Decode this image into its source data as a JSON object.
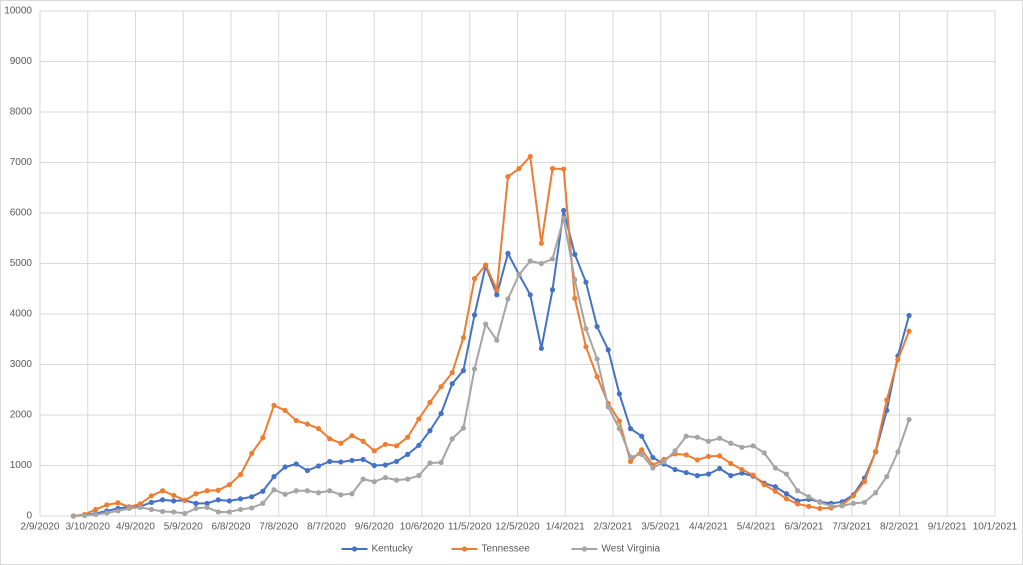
{
  "chart_data": {
    "type": "line",
    "x": [
      "2020-03-01",
      "2020-03-08",
      "2020-03-15",
      "2020-03-22",
      "2020-03-29",
      "2020-04-05",
      "2020-04-12",
      "2020-04-19",
      "2020-04-26",
      "2020-05-03",
      "2020-05-10",
      "2020-05-17",
      "2020-05-24",
      "2020-05-31",
      "2020-06-07",
      "2020-06-14",
      "2020-06-21",
      "2020-06-28",
      "2020-07-05",
      "2020-07-12",
      "2020-07-19",
      "2020-07-26",
      "2020-08-02",
      "2020-08-09",
      "2020-08-16",
      "2020-08-23",
      "2020-08-30",
      "2020-09-06",
      "2020-09-13",
      "2020-09-20",
      "2020-09-27",
      "2020-10-04",
      "2020-10-11",
      "2020-10-18",
      "2020-10-25",
      "2020-11-01",
      "2020-11-08",
      "2020-11-15",
      "2020-11-22",
      "2020-11-29",
      "2020-12-06",
      "2020-12-13",
      "2020-12-20",
      "2020-12-27",
      "2021-01-03",
      "2021-01-10",
      "2021-01-17",
      "2021-01-24",
      "2021-01-31",
      "2021-02-07",
      "2021-02-14",
      "2021-02-21",
      "2021-02-28",
      "2021-03-07",
      "2021-03-14",
      "2021-03-21",
      "2021-03-28",
      "2021-04-04",
      "2021-04-11",
      "2021-04-18",
      "2021-04-25",
      "2021-05-02",
      "2021-05-09",
      "2021-05-16",
      "2021-05-23",
      "2021-05-30",
      "2021-06-06",
      "2021-06-13",
      "2021-06-20",
      "2021-06-27",
      "2021-07-04",
      "2021-07-11",
      "2021-07-18",
      "2021-07-25",
      "2021-08-01",
      "2021-08-08"
    ],
    "series": [
      {
        "name": "Kentucky",
        "color": "#4472c4",
        "values": [
          0,
          20,
          50,
          100,
          150,
          180,
          190,
          270,
          320,
          300,
          310,
          250,
          250,
          320,
          300,
          340,
          380,
          490,
          780,
          970,
          1030,
          900,
          990,
          1080,
          1070,
          1100,
          1120,
          1000,
          1010,
          1080,
          1220,
          1400,
          1690,
          2030,
          2620,
          2880,
          3980,
          4950,
          4380,
          5200,
          4780,
          4380,
          3320,
          4480,
          6050,
          5180,
          4630,
          3750,
          3290,
          2420,
          1730,
          1580,
          1160,
          1030,
          920,
          860,
          800,
          830,
          940,
          800,
          850,
          790,
          650,
          580,
          440,
          300,
          330,
          280,
          250,
          280,
          420,
          750,
          1270,
          2090,
          3170,
          3970
        ]
      },
      {
        "name": "Tennessee",
        "color": "#ed7d31",
        "values": [
          0,
          30,
          130,
          220,
          260,
          180,
          240,
          400,
          500,
          410,
          310,
          440,
          500,
          510,
          620,
          820,
          1240,
          1550,
          2190,
          2090,
          1890,
          1820,
          1730,
          1530,
          1440,
          1590,
          1480,
          1290,
          1420,
          1390,
          1560,
          1920,
          2250,
          2560,
          2840,
          3530,
          4700,
          4970,
          4480,
          6720,
          6880,
          7120,
          5400,
          6880,
          6870,
          4310,
          3350,
          2760,
          2230,
          1880,
          1080,
          1310,
          1010,
          1120,
          1230,
          1210,
          1110,
          1180,
          1190,
          1040,
          920,
          810,
          620,
          490,
          340,
          240,
          190,
          150,
          160,
          220,
          400,
          680,
          1280,
          2300,
          3100,
          3660
        ]
      },
      {
        "name": "West Virginia",
        "color": "#a5a5a5",
        "values": [
          0,
          10,
          30,
          60,
          100,
          150,
          170,
          130,
          90,
          80,
          50,
          150,
          170,
          80,
          80,
          130,
          160,
          250,
          520,
          430,
          500,
          500,
          460,
          500,
          420,
          440,
          730,
          680,
          760,
          710,
          730,
          800,
          1050,
          1060,
          1530,
          1740,
          2910,
          3800,
          3480,
          4300,
          4780,
          5050,
          5000,
          5090,
          5900,
          4680,
          3710,
          3110,
          2160,
          1730,
          1170,
          1220,
          950,
          1070,
          1290,
          1580,
          1560,
          1480,
          1540,
          1440,
          1360,
          1390,
          1250,
          950,
          830,
          500,
          380,
          270,
          200,
          200,
          250,
          270,
          460,
          780,
          1270,
          1910
        ]
      }
    ],
    "xlim": [
      "2020-02-09",
      "2021-10-01"
    ],
    "xticks": [
      {
        "value": "2020-02-09",
        "label": "2/9/2020"
      },
      {
        "value": "2020-03-10",
        "label": "3/10/2020"
      },
      {
        "value": "2020-04-09",
        "label": "4/9/2020"
      },
      {
        "value": "2020-05-09",
        "label": "5/9/2020"
      },
      {
        "value": "2020-06-08",
        "label": "6/8/2020"
      },
      {
        "value": "2020-07-08",
        "label": "7/8/2020"
      },
      {
        "value": "2020-08-07",
        "label": "8/7/2020"
      },
      {
        "value": "2020-09-06",
        "label": "9/6/2020"
      },
      {
        "value": "2020-10-06",
        "label": "10/6/2020"
      },
      {
        "value": "2020-11-05",
        "label": "11/5/2020"
      },
      {
        "value": "2020-12-05",
        "label": "12/5/2020"
      },
      {
        "value": "2021-01-04",
        "label": "1/4/2021"
      },
      {
        "value": "2021-02-03",
        "label": "2/3/2021"
      },
      {
        "value": "2021-03-05",
        "label": "3/5/2021"
      },
      {
        "value": "2021-04-04",
        "label": "4/4/2021"
      },
      {
        "value": "2021-05-04",
        "label": "5/4/2021"
      },
      {
        "value": "2021-06-03",
        "label": "6/3/2021"
      },
      {
        "value": "2021-07-03",
        "label": "7/3/2021"
      },
      {
        "value": "2021-08-02",
        "label": "8/2/2021"
      },
      {
        "value": "2021-09-01",
        "label": "9/1/2021"
      },
      {
        "value": "2021-10-01",
        "label": "10/1/2021"
      }
    ],
    "ylim": [
      0,
      10000
    ],
    "yticks": [
      0,
      1000,
      2000,
      3000,
      4000,
      5000,
      6000,
      7000,
      8000,
      9000,
      10000
    ],
    "grid": true,
    "legend": "bottom"
  }
}
